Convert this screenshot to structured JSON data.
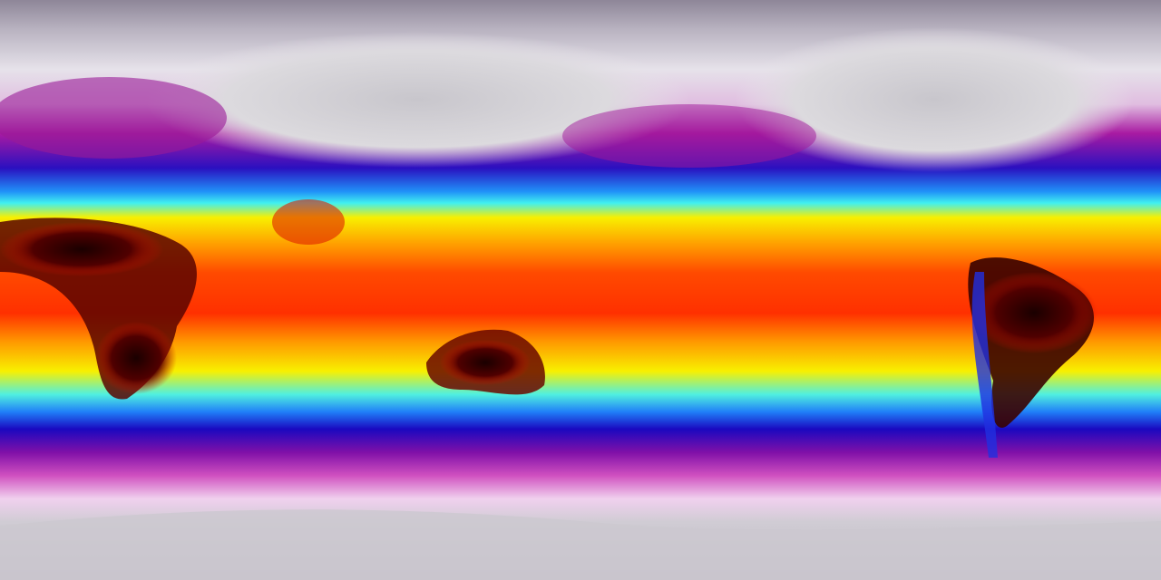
{
  "map": {
    "projection": "equirectangular",
    "colormap": [
      "#c8c4cc",
      "#e8e4ea",
      "#f2c8f0",
      "#a0189a",
      "#1a10c8",
      "#30e0f0",
      "#f8f000",
      "#ff8c00",
      "#ff4000",
      "#e01000",
      "#2a0000"
    ],
    "land_hot_color": "#2a0000",
    "land_cold_color": "#d8d6da",
    "polar_color": "#c8c4cc"
  }
}
